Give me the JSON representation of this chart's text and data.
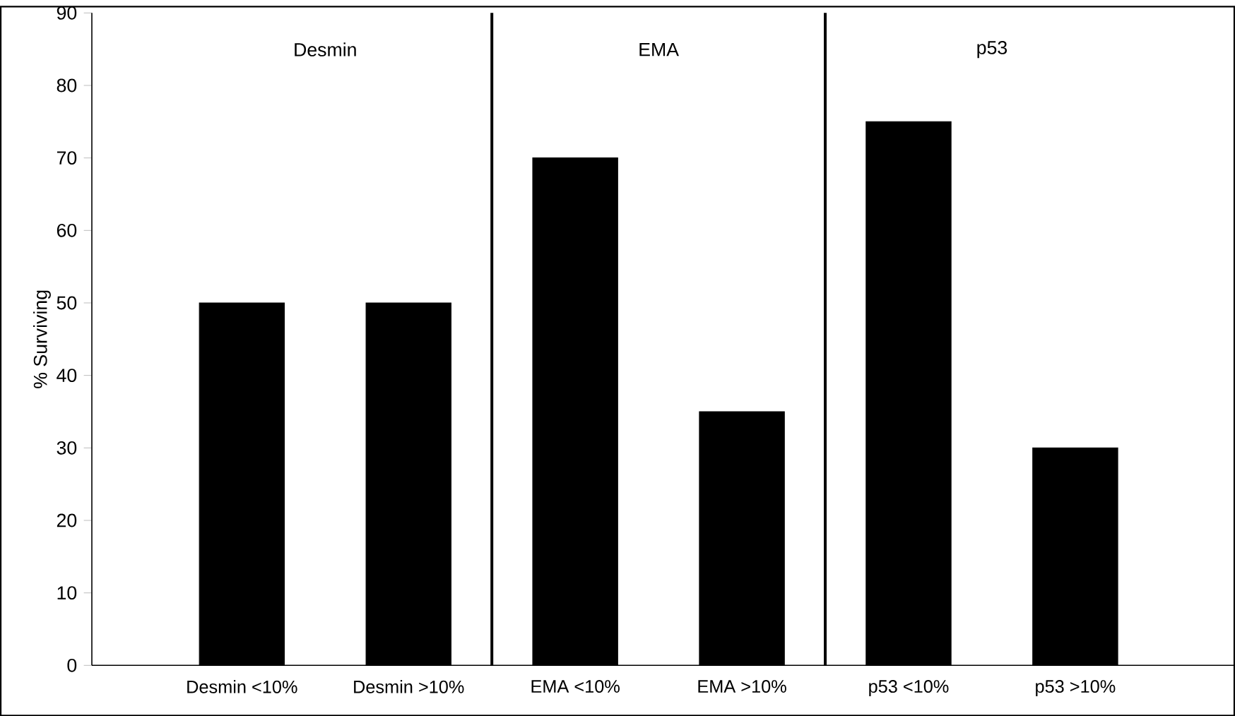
{
  "chart_data": {
    "type": "bar",
    "ylabel": "% Surviving",
    "categories": [
      "Desmin <10%",
      "Desmin >10%",
      "EMA <10%",
      "EMA >10%",
      "p53 <10%",
      "p53 >10%"
    ],
    "values": [
      50,
      50,
      70,
      35,
      75,
      30
    ],
    "color": "#000000",
    "ylim": [
      0,
      90
    ],
    "yticks": [
      0,
      10,
      20,
      30,
      40,
      50,
      60,
      70,
      80,
      90
    ],
    "annotations": [
      "Desmin",
      "EMA",
      "p53"
    ]
  }
}
